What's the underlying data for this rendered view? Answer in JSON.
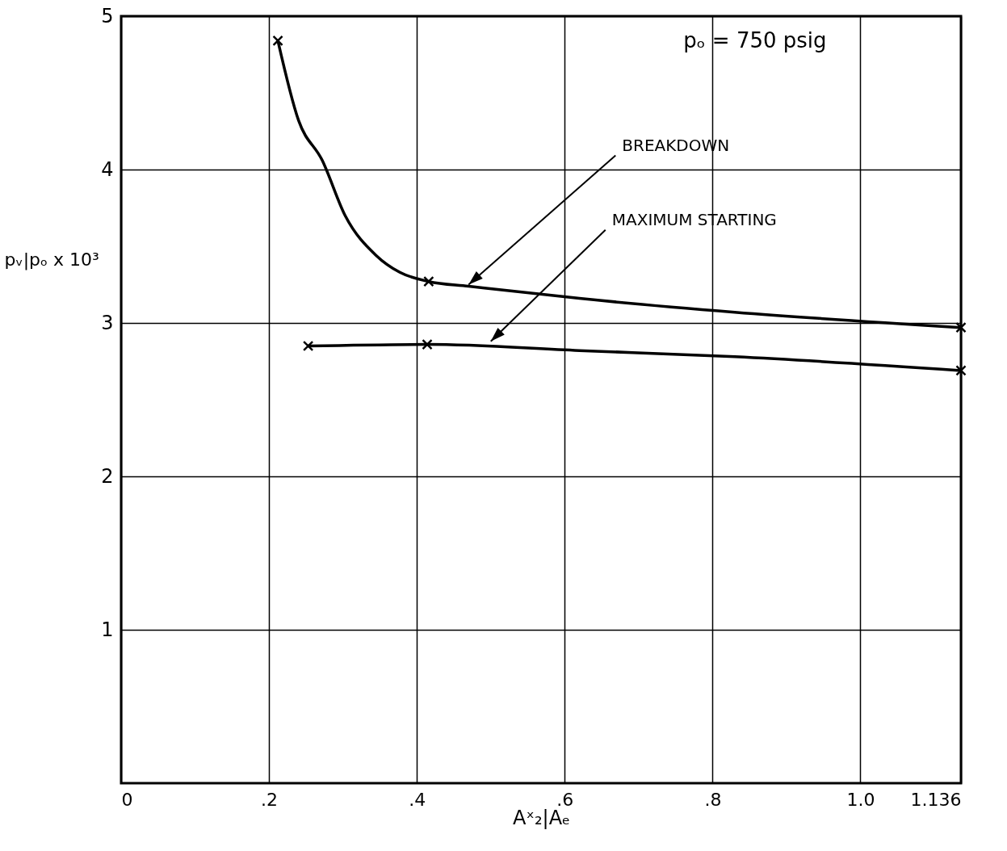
{
  "chart_data": {
    "type": "line",
    "xlabel": "Aˣ₂|Aₑ",
    "ylabel": "pᵥ|pₒ x 10³",
    "xlim": [
      0,
      1.136
    ],
    "ylim": [
      0,
      5
    ],
    "xticks": [
      0,
      {
        "value": 0.2,
        "label": ".2"
      },
      {
        "value": 0.4,
        "label": ".4"
      },
      {
        "value": 0.6,
        "label": ".6"
      },
      {
        "value": 0.8,
        "label": ".8"
      },
      {
        "value": 1.0,
        "label": "1.0"
      },
      1.136
    ],
    "yticks": [
      1,
      2,
      3,
      4,
      5
    ],
    "grid": true,
    "marker": "cross",
    "line_style": "solid",
    "series": [
      {
        "color": "#000000",
        "marker": "none",
        "x": [
          0.212,
          0.24,
          0.272,
          0.303,
          0.345,
          0.377,
          0.416,
          0.47,
          0.62,
          0.83,
          1.136
        ],
        "values": [
          4.84,
          4.32,
          4.06,
          3.7,
          3.44,
          3.33,
          3.27,
          3.24,
          3.16,
          3.07,
          2.97
        ]
      },
      {
        "color": "#000000",
        "marker": "none",
        "x": [
          0.253,
          0.414,
          0.62,
          0.83,
          1.136
        ],
        "values": [
          2.85,
          2.86,
          2.82,
          2.78,
          2.69
        ]
      },
      {
        "type": "scatter",
        "color": "#000000",
        "x": [
          0.212,
          0.416,
          1.136
        ],
        "values": [
          4.84,
          3.27,
          2.97
        ]
      },
      {
        "type": "scatter",
        "color": "#000000",
        "x": [
          0.253,
          0.414,
          1.136
        ],
        "values": [
          2.85,
          2.86,
          2.69
        ]
      }
    ],
    "annotations": [
      "pₒ = 750 psig",
      {
        "text": "BREAKDOWN",
        "x": 0.47,
        "y": 3.25
      },
      {
        "text": "MAXIMUM STARTING",
        "x": 0.5,
        "y": 2.88
      }
    ]
  }
}
